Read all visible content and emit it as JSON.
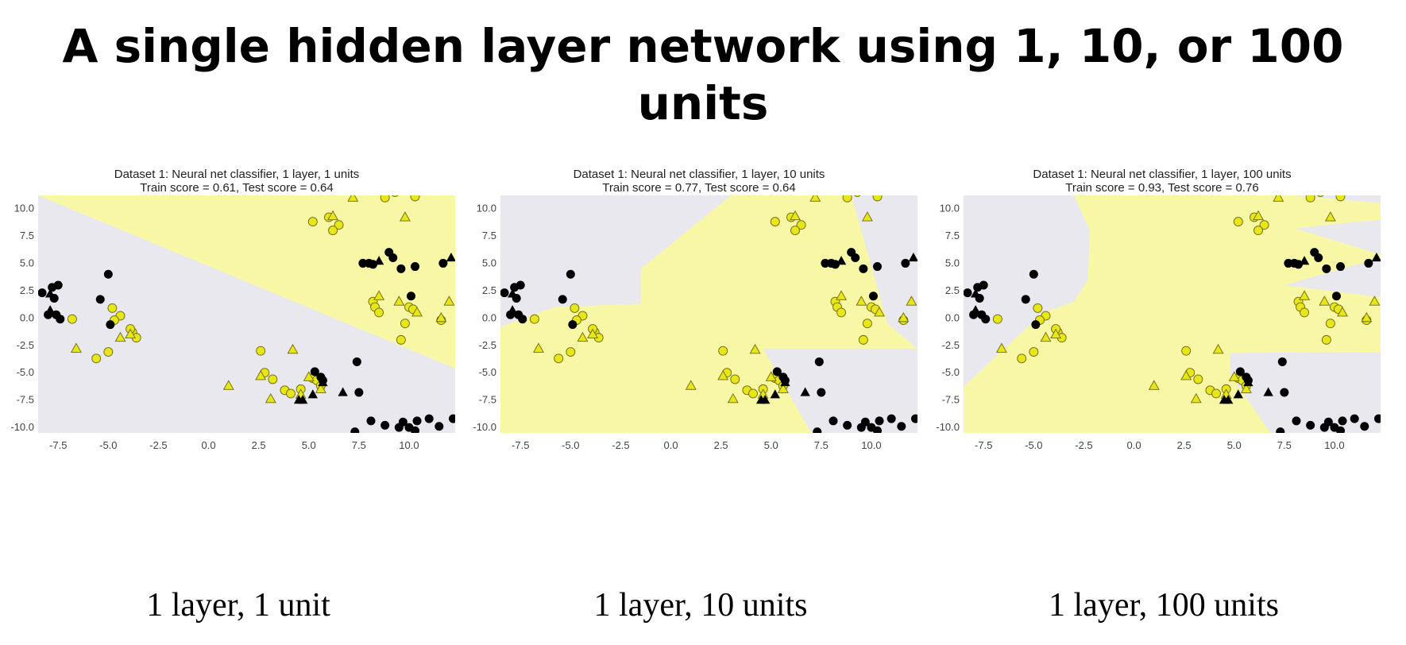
{
  "slide": {
    "title": "A single hidden layer network using 1, 10, or 100 units"
  },
  "colors": {
    "region_yellow": "#f8f7a6",
    "region_gray": "#e9e8ef",
    "class1_fill": "#e8e619",
    "class0_fill": "#000000"
  },
  "chart_data": [
    {
      "type": "scatter",
      "title": "Dataset 1: Neural net classifier, 1 layer, 1 units",
      "subtitle": "Train score = 0.61, Test score = 0.64",
      "caption": "1 layer, 1 unit",
      "xlim": [
        -8.5,
        12.3
      ],
      "ylim": [
        -10.5,
        11.2
      ],
      "xticks": [
        -7.5,
        -5.0,
        -2.5,
        0.0,
        2.5,
        5.0,
        7.5,
        10.0
      ],
      "yticks": [
        10.0,
        7.5,
        5.0,
        2.5,
        0.0,
        -2.5,
        -5.0,
        -7.5,
        -10.0
      ],
      "grid": false,
      "legend": "none",
      "background_class": 0,
      "regions": [
        [
          [
            -8.5,
            11.2
          ],
          [
            12.3,
            11.2
          ],
          [
            12.3,
            -4.6
          ]
        ]
      ]
    },
    {
      "type": "scatter",
      "title": "Dataset 1: Neural net classifier, 1 layer, 10 units",
      "subtitle": "Train score = 0.77, Test score = 0.64",
      "caption": "1 layer, 10 units",
      "xlim": [
        -8.5,
        12.3
      ],
      "ylim": [
        -10.5,
        11.2
      ],
      "xticks": [
        -7.5,
        -5.0,
        -2.5,
        0.0,
        2.5,
        5.0,
        7.5,
        10.0
      ],
      "yticks": [
        10.0,
        7.5,
        5.0,
        2.5,
        0.0,
        -2.5,
        -5.0,
        -7.5,
        -10.0
      ],
      "grid": false,
      "legend": "none",
      "background_class": 0,
      "regions": [
        [
          [
            -8.5,
            -0.8
          ],
          [
            -5.8,
            1.0
          ],
          [
            -1.5,
            1.3
          ],
          [
            -1.5,
            4.5
          ],
          [
            3.0,
            11.2
          ],
          [
            9.0,
            11.2
          ],
          [
            10.8,
            -0.5
          ],
          [
            12.3,
            -2.8
          ],
          [
            4.6,
            -2.8
          ],
          [
            7.0,
            -10.5
          ],
          [
            -8.5,
            -10.5
          ]
        ]
      ]
    },
    {
      "type": "scatter",
      "title": "Dataset 1: Neural net classifier, 1 layer, 100 units",
      "subtitle": "Train score = 0.93, Test score = 0.76",
      "caption": "1 layer, 100 units",
      "xlim": [
        -8.5,
        12.3
      ],
      "ylim": [
        -10.5,
        11.2
      ],
      "xticks": [
        -7.5,
        -5.0,
        -2.5,
        0.0,
        2.5,
        5.0,
        7.5,
        10.0
      ],
      "yticks": [
        10.0,
        7.5,
        5.0,
        2.5,
        0.0,
        -2.5,
        -5.0,
        -7.5,
        -10.0
      ],
      "grid": false,
      "legend": "none",
      "background_class": 0,
      "regions": [
        [
          [
            -8.5,
            -6.3
          ],
          [
            -6.3,
            -2.5
          ],
          [
            -4.5,
            0.5
          ],
          [
            -3.0,
            1.5
          ],
          [
            -2.3,
            3.5
          ],
          [
            -2.2,
            8.0
          ],
          [
            -3.0,
            11.2
          ],
          [
            8.0,
            11.2
          ],
          [
            12.3,
            10.5
          ],
          [
            12.3,
            9.0
          ],
          [
            8.0,
            8.2
          ],
          [
            12.3,
            5.8
          ],
          [
            12.3,
            5.5
          ],
          [
            7.5,
            3.0
          ],
          [
            12.3,
            1.9
          ],
          [
            12.3,
            -3.1
          ],
          [
            4.8,
            -3.2
          ],
          [
            4.8,
            -5.2
          ],
          [
            5.3,
            -6.5
          ],
          [
            6.8,
            -10.5
          ],
          [
            -8.5,
            -10.5
          ]
        ]
      ]
    }
  ],
  "points": {
    "class1_circles": [
      [
        5.2,
        8.8
      ],
      [
        6.0,
        9.2
      ],
      [
        6.5,
        8.5
      ],
      [
        6.2,
        8.0
      ],
      [
        8.8,
        11.0
      ],
      [
        9.3,
        11.5
      ],
      [
        10.3,
        11.1
      ],
      [
        8.2,
        1.5
      ],
      [
        8.3,
        1.0
      ],
      [
        8.5,
        0.5
      ],
      [
        10.0,
        1.0
      ],
      [
        10.2,
        0.8
      ],
      [
        9.8,
        -0.5
      ],
      [
        9.6,
        -2.0
      ],
      [
        11.6,
        -0.2
      ],
      [
        -4.8,
        0.9
      ],
      [
        -4.4,
        0.2
      ],
      [
        -4.7,
        -0.2
      ],
      [
        -3.8,
        -1.3
      ],
      [
        -3.6,
        -1.8
      ],
      [
        -3.9,
        -1.0
      ],
      [
        -6.8,
        -0.1
      ],
      [
        -5.6,
        -3.7
      ],
      [
        -5.0,
        -3.1
      ],
      [
        2.6,
        -3.0
      ],
      [
        2.8,
        -5.0
      ],
      [
        3.2,
        -5.6
      ],
      [
        3.8,
        -6.6
      ],
      [
        4.1,
        -6.9
      ],
      [
        5.2,
        -5.5
      ],
      [
        5.4,
        -5.7
      ],
      [
        5.6,
        -6.2
      ],
      [
        4.6,
        -6.5
      ]
    ],
    "class1_triangles": [
      [
        6.2,
        9.3
      ],
      [
        7.2,
        11.0
      ],
      [
        9.8,
        9.2
      ],
      [
        8.5,
        2.0
      ],
      [
        9.5,
        1.5
      ],
      [
        10.4,
        0.5
      ],
      [
        12.0,
        1.5
      ],
      [
        11.6,
        0.0
      ],
      [
        -3.9,
        -1.5
      ],
      [
        -4.4,
        -1.8
      ],
      [
        -6.6,
        -2.8
      ],
      [
        2.6,
        -5.3
      ],
      [
        3.1,
        -7.4
      ],
      [
        4.2,
        -2.9
      ],
      [
        4.6,
        -7.0
      ],
      [
        1.0,
        -6.2
      ],
      [
        5.0,
        -5.4
      ],
      [
        5.6,
        -6.5
      ]
    ],
    "class0_circles": [
      [
        -8.3,
        2.3
      ],
      [
        -7.8,
        2.8
      ],
      [
        -7.5,
        3.0
      ],
      [
        -7.7,
        1.8
      ],
      [
        -8.0,
        0.3
      ],
      [
        -7.6,
        0.3
      ],
      [
        -7.4,
        -0.1
      ],
      [
        -5.0,
        4.0
      ],
      [
        -5.4,
        1.7
      ],
      [
        -4.9,
        -0.6
      ],
      [
        8.0,
        5.0
      ],
      [
        7.7,
        5.0
      ],
      [
        8.2,
        4.9
      ],
      [
        9.0,
        6.0
      ],
      [
        9.2,
        5.5
      ],
      [
        9.6,
        4.5
      ],
      [
        10.3,
        4.7
      ],
      [
        10.1,
        2.0
      ],
      [
        11.7,
        5.0
      ],
      [
        5.3,
        -4.9
      ],
      [
        5.6,
        -5.4
      ],
      [
        5.7,
        -5.7
      ],
      [
        7.4,
        -4.0
      ],
      [
        7.5,
        -6.8
      ],
      [
        8.1,
        -9.4
      ],
      [
        8.8,
        -9.8
      ],
      [
        9.5,
        -10.0
      ],
      [
        9.7,
        -9.5
      ],
      [
        10.0,
        -10.0
      ],
      [
        10.4,
        -9.4
      ],
      [
        10.3,
        -10.3
      ],
      [
        11.0,
        -9.2
      ],
      [
        11.5,
        -9.9
      ],
      [
        12.2,
        -9.2
      ],
      [
        7.3,
        -10.4
      ]
    ],
    "class0_triangles": [
      [
        -7.9,
        2.2
      ],
      [
        -7.9,
        0.7
      ],
      [
        8.5,
        5.2
      ],
      [
        12.1,
        5.5
      ],
      [
        4.5,
        -7.5
      ],
      [
        4.7,
        -7.5
      ],
      [
        5.2,
        -7.0
      ],
      [
        5.7,
        -5.9
      ],
      [
        6.7,
        -6.8
      ]
    ]
  }
}
